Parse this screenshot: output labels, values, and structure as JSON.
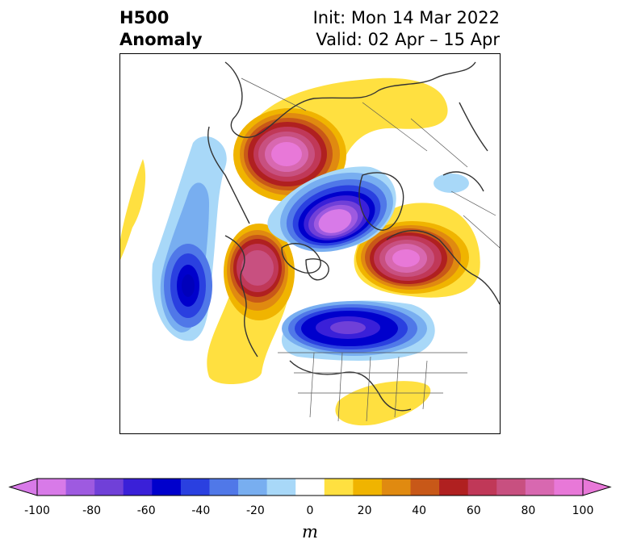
{
  "title": {
    "left_line1": "H500",
    "left_line2": "Anomaly",
    "right_line1": "Init: Mon 14 Mar 2022",
    "right_line2": "Valid: 02 Apr – 15 Apr"
  },
  "colorbar": {
    "unit": "m",
    "ticks": [
      "-100",
      "-80",
      "-60",
      "-40",
      "-20",
      "0",
      "20",
      "40",
      "60",
      "80",
      "100"
    ],
    "colors": [
      "#d87ae8",
      "#9e5ae0",
      "#7040d8",
      "#3a20d8",
      "#0000cc",
      "#2a40e0",
      "#5078e8",
      "#78aef0",
      "#a8d8f8",
      "#ffffff",
      "#ffe040",
      "#f0b400",
      "#e08a10",
      "#c85818",
      "#b02020",
      "#c03858",
      "#c85080",
      "#d868b0",
      "#e878d8"
    ],
    "under_color": "#d87ae8",
    "over_color": "#e878d8"
  }
}
